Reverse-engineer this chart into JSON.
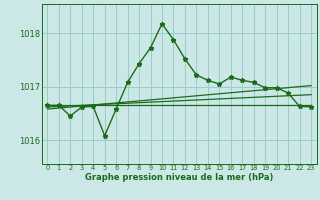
{
  "title": "Graphe pression niveau de la mer (hPa)",
  "background_color": "#cce8e6",
  "grid_color": "#99ccca",
  "line_color": "#1a6b1a",
  "xlim": [
    -0.5,
    23.5
  ],
  "ylim": [
    1015.55,
    1018.55
  ],
  "yticks": [
    1016,
    1017,
    1018
  ],
  "xticks": [
    0,
    1,
    2,
    3,
    4,
    5,
    6,
    7,
    8,
    9,
    10,
    11,
    12,
    13,
    14,
    15,
    16,
    17,
    18,
    19,
    20,
    21,
    22,
    23
  ],
  "hours": [
    0,
    1,
    2,
    3,
    4,
    5,
    6,
    7,
    8,
    9,
    10,
    11,
    12,
    13,
    14,
    15,
    16,
    17,
    18,
    19,
    20,
    21,
    22,
    23
  ],
  "pressure": [
    1016.65,
    1016.65,
    1016.45,
    1016.62,
    1016.63,
    1016.08,
    1016.58,
    1017.08,
    1017.43,
    1017.73,
    1018.18,
    1017.88,
    1017.52,
    1017.22,
    1017.12,
    1017.05,
    1017.18,
    1017.12,
    1017.08,
    1016.98,
    1016.98,
    1016.88,
    1016.63,
    1016.62
  ],
  "trend1_x": [
    0,
    23
  ],
  "trend1_y": [
    1016.65,
    1016.65
  ],
  "trend2_x": [
    0,
    23
  ],
  "trend2_y": [
    1016.62,
    1016.85
  ],
  "trend3_x": [
    0,
    23
  ],
  "trend3_y": [
    1016.58,
    1017.02
  ]
}
